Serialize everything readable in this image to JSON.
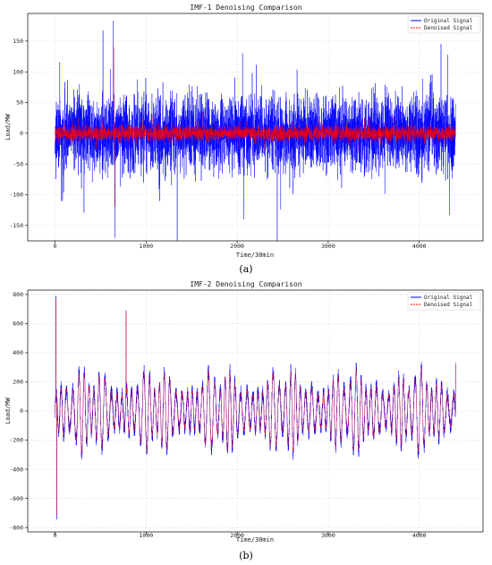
{
  "chart_data": [
    {
      "type": "line",
      "panel_label": "(a)",
      "title": "IMF-1 Denoising Comparison",
      "xlabel": "Time/30min",
      "ylabel": "Load/MW",
      "xlim": [
        -300,
        4700
      ],
      "ylim": [
        -175,
        195
      ],
      "xticks": [
        0,
        1000,
        2000,
        3000,
        4000
      ],
      "yticks": [
        -150,
        -100,
        -50,
        0,
        50,
        100,
        150
      ],
      "grid": true,
      "legend_position": "top-right",
      "n_points": 4400,
      "series": [
        {
          "name": "Original Signal",
          "color": "#0000ff",
          "style": "solid",
          "noise_scale": 30,
          "spikes": [
            [
              640,
              183
            ],
            [
              660,
              -170
            ],
            [
              2060,
              130
            ],
            [
              2070,
              -140
            ],
            [
              4310,
              128
            ],
            [
              4330,
              -133
            ],
            [
              1150,
              -110
            ]
          ]
        },
        {
          "name": "Denoised Signal",
          "color": "#ff0000",
          "style": "dashed",
          "noise_scale": 6,
          "spikes": [
            [
              645,
              140
            ],
            [
              655,
              -120
            ]
          ]
        }
      ]
    },
    {
      "type": "line",
      "panel_label": "(b)",
      "title": "IMF-2 Denoising Comparison",
      "xlabel": "Time/30min",
      "ylabel": "Load/MW",
      "xlim": [
        -300,
        4700
      ],
      "ylim": [
        -830,
        830
      ],
      "xticks": [
        0,
        1000,
        2000,
        3000,
        4000
      ],
      "yticks": [
        -800,
        -600,
        -400,
        -200,
        0,
        200,
        400,
        600,
        800
      ],
      "grid": true,
      "legend_position": "top-right",
      "n_points": 4400,
      "series": [
        {
          "name": "Original Signal",
          "color": "#0000ff",
          "style": "solid",
          "amplitude": 300,
          "noise_scale": 50,
          "peaks": [
            [
              10,
              790
            ],
            [
              20,
              -745
            ],
            [
              780,
              690
            ],
            [
              4410,
              330
            ]
          ]
        },
        {
          "name": "Denoised Signal",
          "color": "#ff0000",
          "style": "dashed",
          "amplitude": 290,
          "noise_scale": 15,
          "peaks": [
            [
              10,
              770
            ],
            [
              20,
              -720
            ],
            [
              780,
              680
            ],
            [
              4410,
              320
            ]
          ]
        }
      ]
    }
  ]
}
